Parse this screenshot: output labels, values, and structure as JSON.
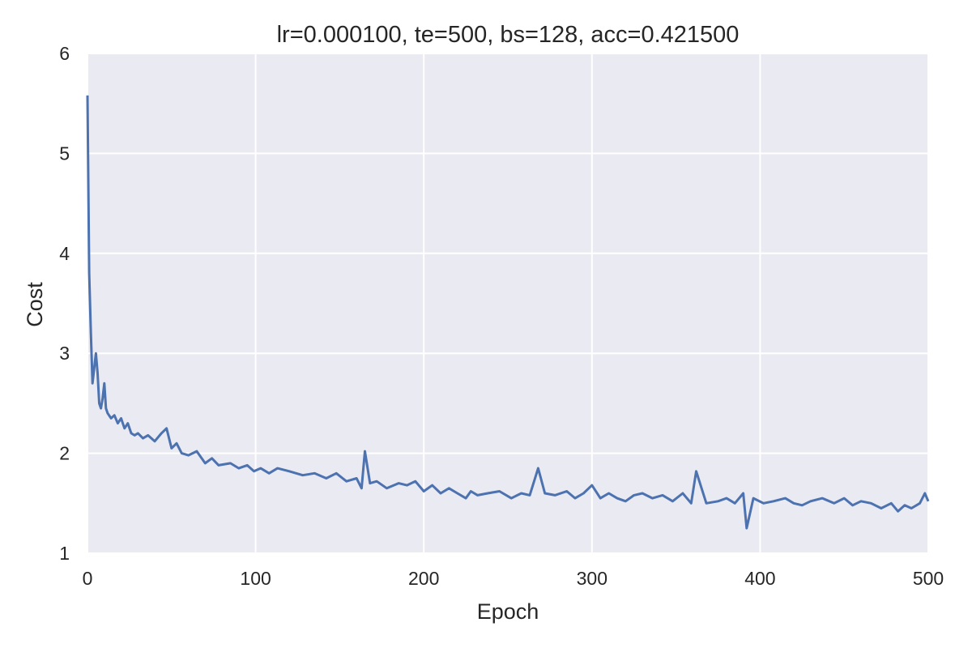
{
  "chart_data": {
    "type": "line",
    "title": "lr=0.000100, te=500, bs=128, acc=0.421500",
    "xlabel": "Epoch",
    "ylabel": "Cost",
    "xlim": [
      0,
      500
    ],
    "ylim": [
      1,
      6
    ],
    "xticks": [
      "0",
      "100",
      "200",
      "300",
      "400",
      "500"
    ],
    "yticks": [
      "1",
      "2",
      "3",
      "4",
      "5",
      "6"
    ],
    "grid": true,
    "background_color": "#eaeaf2",
    "grid_color": "#ffffff",
    "series": [
      {
        "color": "#4c72b0",
        "x": [
          0,
          1,
          2,
          3,
          4,
          5,
          6,
          7,
          8,
          9,
          10,
          11,
          12,
          14,
          16,
          18,
          20,
          22,
          24,
          26,
          28,
          30,
          33,
          36,
          40,
          44,
          47,
          50,
          53,
          56,
          60,
          65,
          70,
          74,
          78,
          85,
          90,
          95,
          99,
          103,
          108,
          113,
          120,
          128,
          135,
          142,
          148,
          154,
          160,
          163,
          165,
          168,
          172,
          178,
          185,
          190,
          195,
          200,
          205,
          210,
          215,
          220,
          225,
          228,
          232,
          238,
          245,
          252,
          258,
          263,
          268,
          272,
          278,
          285,
          290,
          295,
          300,
          305,
          310,
          315,
          320,
          325,
          330,
          336,
          342,
          348,
          354,
          359,
          362,
          368,
          375,
          380,
          385,
          390,
          392,
          396,
          402,
          408,
          415,
          420,
          425,
          430,
          437,
          444,
          450,
          455,
          460,
          466,
          472,
          478,
          482,
          486,
          490,
          495,
          498,
          500
        ],
        "values": [
          5.58,
          3.8,
          3.2,
          2.7,
          2.85,
          3.0,
          2.8,
          2.5,
          2.45,
          2.55,
          2.7,
          2.45,
          2.4,
          2.35,
          2.38,
          2.3,
          2.35,
          2.25,
          2.3,
          2.2,
          2.18,
          2.2,
          2.15,
          2.18,
          2.12,
          2.2,
          2.25,
          2.05,
          2.1,
          2.0,
          1.98,
          2.02,
          1.9,
          1.95,
          1.88,
          1.9,
          1.85,
          1.88,
          1.82,
          1.85,
          1.8,
          1.85,
          1.82,
          1.78,
          1.8,
          1.75,
          1.8,
          1.72,
          1.75,
          1.65,
          2.02,
          1.7,
          1.72,
          1.65,
          1.7,
          1.68,
          1.72,
          1.62,
          1.68,
          1.6,
          1.65,
          1.6,
          1.55,
          1.62,
          1.58,
          1.6,
          1.62,
          1.55,
          1.6,
          1.58,
          1.85,
          1.6,
          1.58,
          1.62,
          1.55,
          1.6,
          1.68,
          1.55,
          1.6,
          1.55,
          1.52,
          1.58,
          1.6,
          1.55,
          1.58,
          1.52,
          1.6,
          1.5,
          1.82,
          1.5,
          1.52,
          1.55,
          1.5,
          1.6,
          1.25,
          1.55,
          1.5,
          1.52,
          1.55,
          1.5,
          1.48,
          1.52,
          1.55,
          1.5,
          1.55,
          1.48,
          1.52,
          1.5,
          1.45,
          1.5,
          1.42,
          1.48,
          1.45,
          1.5,
          1.6,
          1.52
        ]
      }
    ]
  }
}
